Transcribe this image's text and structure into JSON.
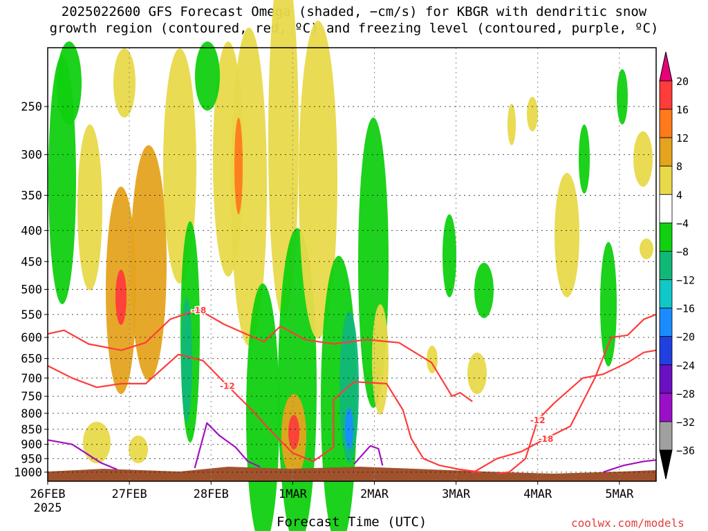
{
  "title_line1": "2025022600 GFS Forecast Omega (shaded, −cm/s) for KBGR with dendritic snow",
  "title_line2": "growth region (contoured, red, ºC) and freezing level (contoured, purple, ºC)",
  "xlabel": "Forecast Time (UTC)",
  "credit": "coolwx.com/models",
  "chart_data": {
    "type": "heatmap",
    "title": "2025022600 GFS Forecast Omega (shaded, −cm/s) for KBGR with dendritic snow growth region (contoured, red, ºC) and freezing level (contoured, purple, ºC)",
    "xlabel": "Forecast Time (UTC)",
    "ylabel": "",
    "x_ticks": [
      "26FEB",
      "27FEB",
      "28FEB",
      "1MAR",
      "2MAR",
      "3MAR",
      "4MAR",
      "5MAR"
    ],
    "x_year": "2025",
    "x_range_days": [
      0,
      7.45
    ],
    "y_ticks": [
      250,
      300,
      350,
      400,
      450,
      500,
      550,
      600,
      650,
      700,
      750,
      800,
      850,
      900,
      950,
      1000
    ],
    "y_range": [
      200,
      1035
    ],
    "y_axis": "pressure (inverted, log scale)",
    "grid": true,
    "colorbar": {
      "levels": [
        20,
        16,
        12,
        8,
        4,
        -4,
        -8,
        -12,
        -16,
        -20,
        -24,
        -28,
        -32,
        -36
      ],
      "colors": [
        "#e8007a",
        "#ff3b3b",
        "#ff7a1a",
        "#e5a31f",
        "#e8d94a",
        "#ffffff",
        "#10d010",
        "#10b878",
        "#10c8c8",
        "#1a8cff",
        "#2040e0",
        "#6a10c0",
        "#9a10c8",
        "#a0a0a0",
        "#000000"
      ],
      "placement": "right"
    },
    "contours": [
      {
        "label": "-18",
        "color": "#ff3b3b",
        "points": [
          [
            0,
            592
          ],
          [
            0.2,
            584
          ],
          [
            0.5,
            615
          ],
          [
            0.9,
            630
          ],
          [
            1.2,
            612
          ],
          [
            1.5,
            560
          ],
          [
            1.85,
            540
          ],
          [
            2.15,
            570
          ],
          [
            2.4,
            590
          ],
          [
            2.65,
            610
          ],
          [
            2.85,
            575
          ],
          [
            3.15,
            605
          ],
          [
            3.5,
            615
          ],
          [
            3.9,
            605
          ],
          [
            4.3,
            612
          ],
          [
            4.7,
            660
          ],
          [
            4.95,
            750
          ],
          [
            5.05,
            740
          ],
          [
            5.2,
            765
          ]
        ]
      },
      {
        "label": "-12",
        "color": "#ff3b3b",
        "points": [
          [
            0,
            668
          ],
          [
            0.3,
            700
          ],
          [
            0.6,
            725
          ],
          [
            0.9,
            715
          ],
          [
            1.2,
            715
          ],
          [
            1.6,
            640
          ],
          [
            1.9,
            655
          ],
          [
            2.2,
            720
          ],
          [
            2.5,
            790
          ],
          [
            2.75,
            860
          ],
          [
            3.0,
            930
          ],
          [
            3.25,
            960
          ],
          [
            3.5,
            910
          ],
          [
            3.5,
            760
          ],
          [
            3.75,
            710
          ],
          [
            4.15,
            715
          ],
          [
            4.35,
            790
          ],
          [
            4.45,
            880
          ],
          [
            4.6,
            950
          ],
          [
            4.8,
            975
          ],
          [
            5.05,
            990
          ],
          [
            5.3,
            1000
          ]
        ]
      },
      {
        "label": "-18",
        "color": "#ff3b3b",
        "points": [
          [
            5.2,
            1003
          ],
          [
            5.5,
            950
          ],
          [
            5.8,
            925
          ],
          [
            6.1,
            880
          ],
          [
            6.4,
            840
          ],
          [
            6.7,
            700
          ],
          [
            6.9,
            600
          ],
          [
            7.1,
            595
          ],
          [
            7.3,
            560
          ],
          [
            7.45,
            550
          ]
        ]
      },
      {
        "label": "-12",
        "color": "#ff3b3b",
        "points": [
          [
            5.5,
            1005
          ],
          [
            5.65,
            1000
          ],
          [
            5.85,
            950
          ],
          [
            6.0,
            820
          ],
          [
            6.2,
            770
          ],
          [
            6.55,
            700
          ],
          [
            6.8,
            690
          ],
          [
            7.1,
            660
          ],
          [
            7.3,
            635
          ],
          [
            7.45,
            630
          ]
        ]
      },
      {
        "label": "0",
        "color": "#a010c0",
        "points": [
          [
            0,
            885
          ],
          [
            0.3,
            900
          ],
          [
            0.65,
            965
          ],
          [
            0.85,
            990
          ]
        ]
      },
      {
        "label": "0",
        "color": "#a010c0",
        "points": [
          [
            1.8,
            985
          ],
          [
            1.95,
            830
          ],
          [
            2.1,
            870
          ],
          [
            2.3,
            910
          ],
          [
            2.45,
            960
          ],
          [
            2.6,
            980
          ]
        ]
      },
      {
        "label": "0",
        "color": "#a010c0",
        "points": [
          [
            3.75,
            970
          ],
          [
            3.95,
            905
          ],
          [
            4.05,
            915
          ],
          [
            4.1,
            975
          ]
        ]
      },
      {
        "label": "0",
        "color": "#a010c0",
        "points": [
          [
            6.8,
            1000
          ],
          [
            7.05,
            975
          ],
          [
            7.3,
            960
          ],
          [
            7.45,
            955
          ]
        ]
      }
    ],
    "surface": "brown (terrain below ~1010 hPa)"
  }
}
